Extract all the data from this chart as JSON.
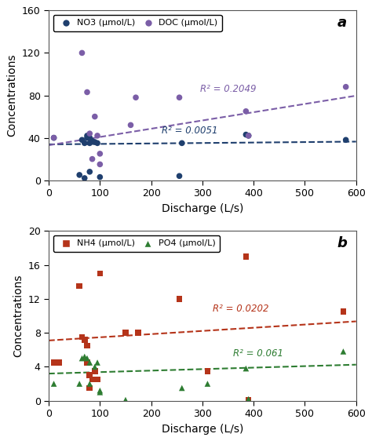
{
  "panel_a": {
    "NO3_x": [
      10,
      60,
      65,
      70,
      70,
      75,
      75,
      80,
      80,
      80,
      85,
      90,
      95,
      100,
      255,
      260,
      385,
      390,
      580
    ],
    "NO3_y": [
      40,
      5,
      38,
      2,
      35,
      40,
      42,
      35,
      40,
      8,
      37,
      36,
      35,
      3,
      4,
      35,
      43,
      42,
      38
    ],
    "DOC_x": [
      10,
      65,
      75,
      80,
      85,
      90,
      95,
      100,
      100,
      160,
      170,
      255,
      385,
      390,
      580
    ],
    "DOC_y": [
      40,
      120,
      83,
      44,
      20,
      60,
      42,
      15,
      25,
      52,
      78,
      78,
      65,
      42,
      88
    ],
    "NO3_color": "#1f3f6e",
    "DOC_color": "#7B5EA7",
    "NO3_trendline_color": "#1f3f6e",
    "DOC_trendline_color": "#7B5EA7",
    "NO3_r2": "R² = 0.0051",
    "DOC_r2": "R² = 0.2049",
    "NO3_trend_slope": 0.00433,
    "NO3_trend_intercept": 33.8,
    "DOC_trend_slope": 0.0778,
    "DOC_trend_intercept": 33.0,
    "NO3_r2_x": 220,
    "NO3_r2_y": 44,
    "DOC_r2_x": 295,
    "DOC_r2_y": 83,
    "ylim": [
      0,
      160
    ],
    "yticks": [
      0,
      40,
      80,
      120,
      160
    ],
    "xticks": [
      0,
      100,
      200,
      300,
      400,
      500,
      600
    ],
    "xticklabels": [
      "0",
      "100",
      "200",
      "300",
      "400",
      "500",
      "600"
    ],
    "xlim": [
      0,
      600
    ],
    "xlabel": "Discharge (L/s)",
    "ylabel": "Concentrations",
    "label_a": "a",
    "legend_labels": [
      "NO3 (μmol/L)",
      "DOC (μmol/L)"
    ],
    "legend_markers": [
      "o",
      "o"
    ],
    "legend_colors": [
      "#1f3f6e",
      "#7B5EA7"
    ]
  },
  "panel_b": {
    "NH4_x": [
      10,
      20,
      60,
      65,
      70,
      75,
      75,
      80,
      80,
      85,
      90,
      95,
      100,
      150,
      175,
      255,
      310,
      385,
      390,
      575
    ],
    "NH4_y": [
      4.5,
      4.5,
      13.5,
      7.5,
      7.2,
      6.5,
      4.5,
      1.5,
      3.0,
      2.5,
      3.5,
      2.5,
      15.0,
      8.0,
      8.0,
      12.0,
      3.5,
      17.0,
      0.1,
      10.5
    ],
    "PO4_x": [
      10,
      60,
      65,
      70,
      75,
      80,
      80,
      90,
      95,
      100,
      100,
      150,
      260,
      310,
      385,
      390,
      575
    ],
    "PO4_y": [
      2.0,
      2.0,
      5.0,
      5.2,
      5.0,
      4.5,
      2.0,
      4.0,
      4.5,
      1.0,
      1.2,
      0.1,
      1.5,
      2.0,
      3.8,
      0.2,
      5.8
    ],
    "NH4_color": "#B5341A",
    "PO4_color": "#2E7D32",
    "NH4_trendline_color": "#B5341A",
    "PO4_trendline_color": "#2E7D32",
    "NH4_r2": "R² = 0.0202",
    "PO4_r2": "R² = 0.061",
    "NH4_trend_slope": 0.00375,
    "NH4_trend_intercept": 7.1,
    "PO4_trend_slope": 0.00175,
    "PO4_trend_intercept": 3.2,
    "NH4_r2_x": 320,
    "NH4_r2_y": 10.5,
    "PO4_r2_x": 360,
    "PO4_r2_y": 5.2,
    "ylim": [
      0,
      20
    ],
    "yticks": [
      0,
      4,
      8,
      12,
      16,
      20
    ],
    "xticks": [
      0,
      100,
      200,
      300,
      400,
      500,
      600
    ],
    "xticklabels": [
      "0",
      "100",
      "200",
      "300",
      "400",
      "500",
      "600"
    ],
    "xlim": [
      0,
      600
    ],
    "xlabel": "Discharge (L/s)",
    "ylabel": "Concentrations",
    "label_b": "b",
    "legend_labels": [
      "NH4 (μmol/L)",
      "PO4 (μmol/L)"
    ],
    "legend_markers": [
      "s",
      "^"
    ],
    "legend_colors": [
      "#B5341A",
      "#2E7D32"
    ]
  },
  "figsize": [
    4.74,
    5.62
  ],
  "dpi": 100
}
